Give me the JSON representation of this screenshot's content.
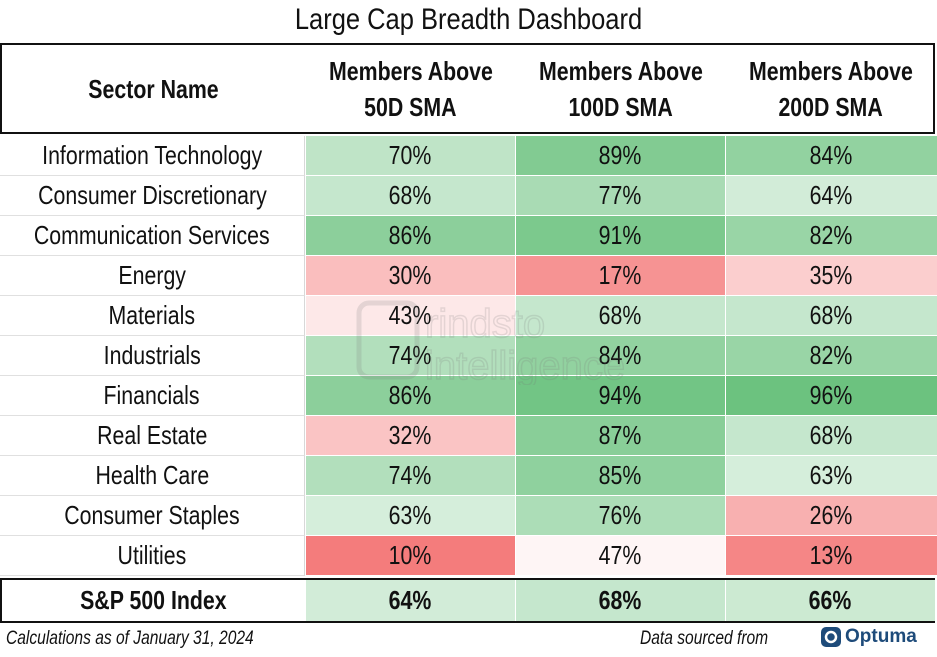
{
  "title": "Large Cap Breadth Dashboard",
  "header": {
    "sector": "Sector Name",
    "col50_line1": "Members Above",
    "col50_line2": "50D SMA",
    "col100_line1": "Members Above",
    "col100_line2": "100D SMA",
    "col200_line1": "Members Above",
    "col200_line2": "200D SMA"
  },
  "chart_data": {
    "type": "table",
    "title": "Large Cap Breadth Dashboard",
    "columns": [
      "Sector Name",
      "Members Above 50D SMA",
      "Members Above 100D SMA",
      "Members Above 200D SMA"
    ],
    "rows": [
      {
        "sector": "Information Technology",
        "v50": "70%",
        "v100": "89%",
        "v200": "84%"
      },
      {
        "sector": "Consumer Discretionary",
        "v50": "68%",
        "v100": "77%",
        "v200": "64%"
      },
      {
        "sector": "Communication Services",
        "v50": "86%",
        "v100": "91%",
        "v200": "82%"
      },
      {
        "sector": "Energy",
        "v50": "30%",
        "v100": "17%",
        "v200": "35%"
      },
      {
        "sector": "Materials",
        "v50": "43%",
        "v100": "68%",
        "v200": "68%"
      },
      {
        "sector": "Industrials",
        "v50": "74%",
        "v100": "84%",
        "v200": "82%"
      },
      {
        "sector": "Financials",
        "v50": "86%",
        "v100": "94%",
        "v200": "96%"
      },
      {
        "sector": "Real Estate",
        "v50": "32%",
        "v100": "87%",
        "v200": "68%"
      },
      {
        "sector": "Health Care",
        "v50": "74%",
        "v100": "85%",
        "v200": "63%"
      },
      {
        "sector": "Consumer Staples",
        "v50": "63%",
        "v100": "76%",
        "v200": "26%"
      },
      {
        "sector": "Utilities",
        "v50": "10%",
        "v100": "47%",
        "v200": "13%"
      }
    ],
    "total": {
      "sector": "S&P 500 Index",
      "v50": "64%",
      "v100": "68%",
      "v200": "66%"
    },
    "color_scale": {
      "low": "#f47c7c",
      "mid": "#ffffff",
      "high": "#6cc27f"
    }
  },
  "footer": {
    "calc_note": "Calculations as of January 31, 2024",
    "source_note": "Data sourced from",
    "source_brand": "Optuma"
  },
  "watermark": {
    "text": "Grindstone Intelligence",
    "line1": "rindsto",
    "line2": "intelligence"
  }
}
